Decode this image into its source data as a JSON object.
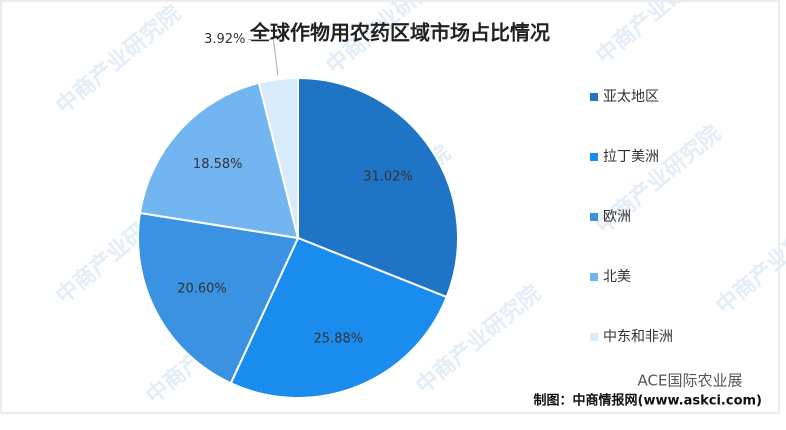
{
  "chart_data": {
    "type": "pie",
    "title": "全球作物用农药区域市场占比情况",
    "categories": [
      "亚太地区",
      "拉丁美洲",
      "欧洲",
      "北美",
      "中东和非洲"
    ],
    "values": [
      31.02,
      25.88,
      20.6,
      18.58,
      3.92
    ],
    "value_labels": [
      "31.02%",
      "25.88%",
      "20.60%",
      "18.58%",
      "3.92%"
    ],
    "colors": [
      "#1f74c6",
      "#1a8cee",
      "#3b92e2",
      "#72b5f1",
      "#d8ebfb"
    ],
    "legend": "right",
    "source": "制图：中商情报网(www.askci.com)",
    "watermark": "中商产业研究院",
    "badge": "ACE国际农业展"
  }
}
